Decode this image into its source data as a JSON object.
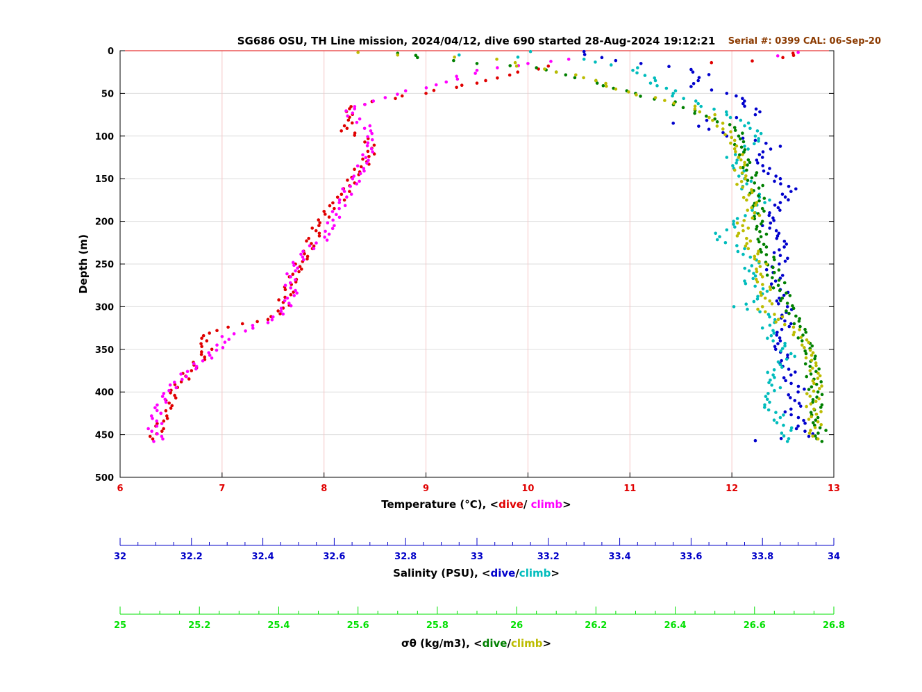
{
  "colors": {
    "temp_axis": "#e00000",
    "temp_dive": "#e00000",
    "temp_climb": "#ff00ff",
    "sal_axis": "#0000c8",
    "sal_dive": "#0000cc",
    "sal_climb": "#00bcbc",
    "sig_axis": "#00e000",
    "sig_dive": "#008000",
    "sig_climb": "#bcbc00",
    "serial": "#8b3a00",
    "grid": "#dddddd",
    "vgrid": "#f5c6c6"
  },
  "header": {
    "title": "SG686 OSU, TH Line mission, 2024/04/12, dive 690 started 28-Aug-2024 19:12:21",
    "serial": "Serial #: 0399  CAL: 06-Sep-20"
  },
  "chart_data": {
    "type": "scatter",
    "grid": true,
    "y_axis": {
      "label": "Depth (m)",
      "range": [
        0,
        500
      ],
      "inverted": true,
      "ticks": [
        "0",
        "50",
        "100",
        "150",
        "200",
        "250",
        "300",
        "350",
        "400",
        "450",
        "500"
      ]
    },
    "axes": [
      {
        "id": "temperature",
        "label_prefix": "Temperature (°C), <",
        "label_dive": "dive",
        "label_sep": "/ ",
        "label_climb": "climb",
        "label_suffix": ">",
        "range": [
          6,
          13
        ],
        "ticks": [
          "6",
          "7",
          "8",
          "9",
          "10",
          "11",
          "12",
          "13"
        ]
      },
      {
        "id": "salinity",
        "label_prefix": "Salinity (PSU), <",
        "label_dive": "dive",
        "label_sep": "/",
        "label_climb": "climb",
        "label_suffix": ">",
        "range": [
          32,
          34
        ],
        "ticks": [
          "32",
          "32.2",
          "32.4",
          "32.6",
          "32.8",
          "33",
          "33.2",
          "33.4",
          "33.6",
          "33.8",
          "34"
        ]
      },
      {
        "id": "sigma_theta",
        "label_prefix": "σθ (kg/m3), <",
        "label_dive": "dive",
        "label_sep": "/",
        "label_climb": "climb",
        "label_suffix": ">",
        "range": [
          25,
          26.8
        ],
        "ticks": [
          "25",
          "25.2",
          "25.4",
          "25.6",
          "25.8",
          "26",
          "26.2",
          "26.4",
          "26.6",
          "26.8"
        ]
      }
    ],
    "series": [
      {
        "name": "dive",
        "axis": "temperature",
        "color": "#e00000",
        "points": [
          [
            12.6,
            3
          ],
          [
            12.5,
            8
          ],
          [
            12.2,
            12
          ],
          [
            11.8,
            14
          ],
          [
            10.2,
            18
          ],
          [
            9.9,
            25
          ],
          [
            9.7,
            32
          ],
          [
            9.5,
            38
          ],
          [
            9.3,
            43
          ],
          [
            9.0,
            50
          ],
          [
            8.7,
            56
          ],
          [
            8.4,
            63
          ],
          [
            8.25,
            68
          ],
          [
            8.25,
            78
          ],
          [
            8.2,
            88
          ],
          [
            8.17,
            94
          ],
          [
            8.3,
            99
          ],
          [
            8.4,
            107
          ],
          [
            8.43,
            118
          ],
          [
            8.42,
            130
          ],
          [
            8.35,
            142
          ],
          [
            8.3,
            155
          ],
          [
            8.25,
            165
          ],
          [
            8.2,
            175
          ],
          [
            8.1,
            185
          ],
          [
            8.05,
            195
          ],
          [
            7.95,
            205
          ],
          [
            7.85,
            220
          ],
          [
            7.8,
            235
          ],
          [
            7.72,
            250
          ],
          [
            7.66,
            265
          ],
          [
            7.62,
            280
          ],
          [
            7.6,
            295
          ],
          [
            7.55,
            305
          ],
          [
            7.45,
            315
          ],
          [
            7.2,
            320
          ],
          [
            6.95,
            328
          ],
          [
            6.85,
            340
          ],
          [
            6.9,
            350
          ],
          [
            6.83,
            362
          ],
          [
            6.7,
            375
          ],
          [
            6.6,
            388
          ],
          [
            6.5,
            398
          ],
          [
            6.45,
            410
          ],
          [
            6.4,
            425
          ],
          [
            6.35,
            440
          ],
          [
            6.32,
            455
          ]
        ]
      },
      {
        "name": "climb",
        "axis": "temperature",
        "color": "#ff00ff",
        "points": [
          [
            12.65,
            2
          ],
          [
            12.45,
            6
          ],
          [
            10.4,
            10
          ],
          [
            10.0,
            15
          ],
          [
            9.7,
            20
          ],
          [
            9.5,
            23
          ],
          [
            9.3,
            30
          ],
          [
            9.1,
            40
          ],
          [
            8.8,
            47
          ],
          [
            8.6,
            55
          ],
          [
            8.4,
            63
          ],
          [
            8.3,
            68
          ],
          [
            8.28,
            73
          ],
          [
            8.35,
            80
          ],
          [
            8.45,
            88
          ],
          [
            8.47,
            97
          ],
          [
            8.43,
            108
          ],
          [
            8.38,
            122
          ],
          [
            8.33,
            135
          ],
          [
            8.28,
            150
          ],
          [
            8.2,
            165
          ],
          [
            8.15,
            178
          ],
          [
            8.12,
            192
          ],
          [
            8.1,
            205
          ],
          [
            8.05,
            215
          ],
          [
            8.03,
            222
          ],
          [
            7.9,
            232
          ],
          [
            7.8,
            245
          ],
          [
            7.72,
            258
          ],
          [
            7.67,
            272
          ],
          [
            7.64,
            290
          ],
          [
            7.58,
            302
          ],
          [
            7.5,
            312
          ],
          [
            7.3,
            322
          ],
          [
            7.0,
            335
          ],
          [
            6.95,
            345
          ],
          [
            6.88,
            357
          ],
          [
            6.75,
            370
          ],
          [
            6.65,
            382
          ],
          [
            6.55,
            395
          ],
          [
            6.45,
            412
          ],
          [
            6.4,
            425
          ],
          [
            6.36,
            440
          ],
          [
            6.33,
            458
          ]
        ]
      },
      {
        "name": "dive",
        "axis": "salinity",
        "color": "#0000cc",
        "points": [
          [
            33.3,
            1
          ],
          [
            33.35,
            8
          ],
          [
            33.6,
            22
          ],
          [
            33.65,
            28
          ],
          [
            33.62,
            35
          ],
          [
            33.6,
            42
          ],
          [
            33.7,
            50
          ],
          [
            33.75,
            65
          ],
          [
            33.78,
            75
          ],
          [
            33.55,
            85
          ],
          [
            33.65,
            92
          ],
          [
            33.7,
            100
          ],
          [
            33.78,
            105
          ],
          [
            33.85,
            112
          ],
          [
            33.8,
            125
          ],
          [
            33.82,
            138
          ],
          [
            33.85,
            150
          ],
          [
            33.88,
            165
          ],
          [
            33.85,
            178
          ],
          [
            33.82,
            190
          ],
          [
            33.8,
            205
          ],
          [
            33.84,
            220
          ],
          [
            33.85,
            240
          ],
          [
            33.83,
            260
          ],
          [
            33.85,
            280
          ],
          [
            33.87,
            300
          ],
          [
            33.88,
            320
          ],
          [
            33.85,
            340
          ],
          [
            33.87,
            360
          ],
          [
            33.88,
            380
          ],
          [
            33.9,
            400
          ],
          [
            33.88,
            420
          ],
          [
            33.9,
            440
          ],
          [
            33.93,
            452
          ],
          [
            33.78,
            457
          ]
        ]
      },
      {
        "name": "climb",
        "axis": "salinity",
        "color": "#00bcbc",
        "points": [
          [
            33.15,
            1
          ],
          [
            32.95,
            5
          ],
          [
            33.3,
            10
          ],
          [
            33.45,
            20
          ],
          [
            33.5,
            35
          ],
          [
            33.55,
            50
          ],
          [
            33.62,
            62
          ],
          [
            33.7,
            75
          ],
          [
            33.75,
            88
          ],
          [
            33.78,
            100
          ],
          [
            33.75,
            112
          ],
          [
            33.7,
            125
          ],
          [
            33.72,
            138
          ],
          [
            33.75,
            150
          ],
          [
            33.77,
            165
          ],
          [
            33.82,
            175
          ],
          [
            33.78,
            190
          ],
          [
            33.7,
            210
          ],
          [
            33.68,
            218
          ],
          [
            33.75,
            232
          ],
          [
            33.77,
            252
          ],
          [
            33.75,
            270
          ],
          [
            33.8,
            285
          ],
          [
            33.72,
            300
          ],
          [
            33.82,
            312
          ],
          [
            33.8,
            325
          ],
          [
            33.83,
            340
          ],
          [
            33.88,
            355
          ],
          [
            33.85,
            368
          ],
          [
            33.83,
            380
          ],
          [
            33.85,
            395
          ],
          [
            33.82,
            412
          ],
          [
            33.85,
            430
          ],
          [
            33.88,
            445
          ],
          [
            33.87,
            458
          ]
        ]
      },
      {
        "name": "dive",
        "axis": "sigma_theta",
        "color": "#008000",
        "points": [
          [
            25.7,
            3
          ],
          [
            25.75,
            8
          ],
          [
            25.9,
            15
          ],
          [
            26.05,
            20
          ],
          [
            26.1,
            25
          ],
          [
            26.2,
            35
          ],
          [
            26.3,
            50
          ],
          [
            26.4,
            60
          ],
          [
            26.45,
            70
          ],
          [
            26.5,
            80
          ],
          [
            26.55,
            90
          ],
          [
            26.56,
            100
          ],
          [
            26.55,
            110
          ],
          [
            26.56,
            125
          ],
          [
            26.58,
            140
          ],
          [
            26.6,
            155
          ],
          [
            26.61,
            170
          ],
          [
            26.62,
            185
          ],
          [
            26.62,
            200
          ],
          [
            26.63,
            215
          ],
          [
            26.63,
            230
          ],
          [
            26.65,
            245
          ],
          [
            26.65,
            260
          ],
          [
            26.66,
            275
          ],
          [
            26.67,
            290
          ],
          [
            26.68,
            305
          ],
          [
            26.7,
            320
          ],
          [
            26.72,
            340
          ],
          [
            26.73,
            355
          ],
          [
            26.74,
            370
          ],
          [
            26.75,
            385
          ],
          [
            26.76,
            400
          ],
          [
            26.77,
            415
          ],
          [
            26.76,
            430
          ],
          [
            26.78,
            445
          ],
          [
            26.77,
            458
          ]
        ]
      },
      {
        "name": "climb",
        "axis": "sigma_theta",
        "color": "#bcbc00",
        "points": [
          [
            25.6,
            2
          ],
          [
            25.7,
            5
          ],
          [
            25.95,
            10
          ],
          [
            26.0,
            18
          ],
          [
            26.1,
            25
          ],
          [
            26.2,
            35
          ],
          [
            26.25,
            45
          ],
          [
            26.35,
            55
          ],
          [
            26.45,
            65
          ],
          [
            26.5,
            75
          ],
          [
            26.52,
            85
          ],
          [
            26.54,
            95
          ],
          [
            26.55,
            105
          ],
          [
            26.55,
            115
          ],
          [
            26.56,
            125
          ],
          [
            26.55,
            140
          ],
          [
            26.57,
            160
          ],
          [
            26.58,
            175
          ],
          [
            26.6,
            190
          ],
          [
            26.57,
            205
          ],
          [
            26.58,
            220
          ],
          [
            26.61,
            235
          ],
          [
            26.63,
            250
          ],
          [
            26.62,
            265
          ],
          [
            26.64,
            280
          ],
          [
            26.62,
            300
          ],
          [
            26.66,
            315
          ],
          [
            26.7,
            330
          ],
          [
            26.72,
            345
          ],
          [
            26.73,
            360
          ],
          [
            26.74,
            375
          ],
          [
            26.75,
            390
          ],
          [
            26.74,
            405
          ],
          [
            26.75,
            420
          ],
          [
            26.76,
            435
          ],
          [
            26.76,
            455
          ]
        ]
      }
    ]
  }
}
